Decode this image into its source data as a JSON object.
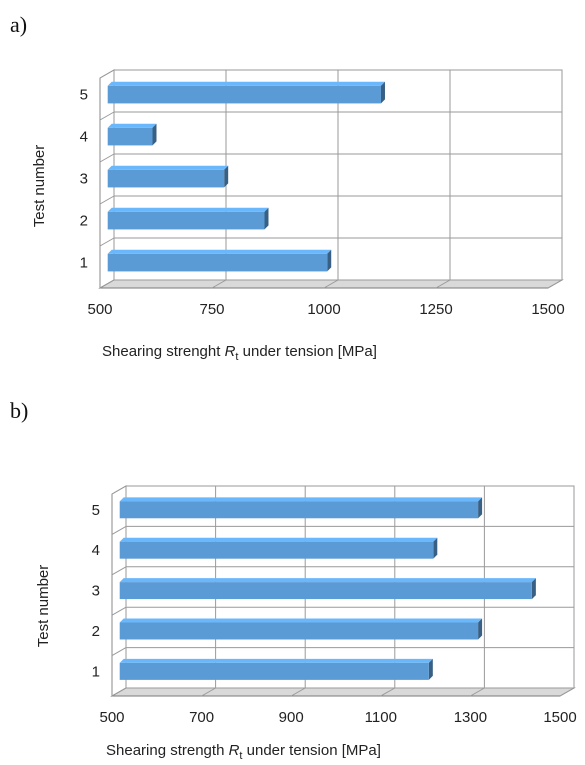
{
  "panels": [
    {
      "label": "a)",
      "chart_data": {
        "type": "bar",
        "orientation": "horizontal",
        "categories": [
          "1",
          "2",
          "3",
          "4",
          "5"
        ],
        "values": [
          990,
          850,
          760,
          600,
          1110
        ],
        "xlim": [
          500,
          1500
        ],
        "xticks": [
          "500",
          "750",
          "1000",
          "1250",
          "1500"
        ],
        "xlabel_prefix": "Shearing strenght ",
        "xlabel_symbol": "R",
        "xlabel_sub": "t",
        "xlabel_suffix": "  under tension [MPa]",
        "ylabel": "Test number",
        "grid": true,
        "bar_color": "#5b9bd5"
      }
    },
    {
      "label": "b)",
      "chart_data": {
        "type": "bar",
        "orientation": "horizontal",
        "categories": [
          "1",
          "2",
          "3",
          "4",
          "5"
        ],
        "values": [
          1190,
          1300,
          1420,
          1200,
          1300
        ],
        "xlim": [
          500,
          1500
        ],
        "xticks": [
          "500",
          "700",
          "900",
          "1100",
          "1300",
          "1500"
        ],
        "xlabel_prefix": "Shearing strength ",
        "xlabel_symbol": "R",
        "xlabel_sub": "t",
        "xlabel_suffix": "  under tension [MPa]",
        "ylabel": "Test number",
        "grid": true,
        "bar_color": "#5b9bd5"
      }
    }
  ]
}
